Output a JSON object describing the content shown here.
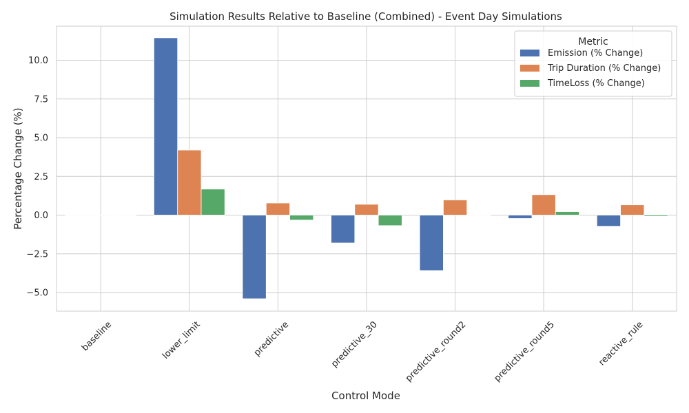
{
  "chart_data": {
    "type": "bar",
    "title": "Simulation Results Relative to Baseline (Combined) - Event Day Simulations",
    "xlabel": "Control Mode",
    "ylabel": "Percentage Change (%)",
    "categories": [
      "baseline",
      "lower_limit",
      "predictive",
      "predictive_30",
      "predictive_round2",
      "predictive_round5",
      "reactive_rule"
    ],
    "ylim": [
      -6.2,
      12.2
    ],
    "yticks": [
      -5.0,
      -2.5,
      0.0,
      2.5,
      5.0,
      7.5,
      10.0
    ],
    "ytick_labels": [
      "−5.0",
      "−2.5",
      "0.0",
      "2.5",
      "5.0",
      "7.5",
      "10.0"
    ],
    "grid": true,
    "legend": {
      "title": "Metric",
      "placement": "top-right"
    },
    "series": [
      {
        "name": "Emission (% Change)",
        "color": "#4c72b0",
        "values": [
          0.0,
          11.45,
          -5.4,
          -1.8,
          -3.58,
          -0.22,
          -0.72
        ]
      },
      {
        "name": "Trip Duration (% Change)",
        "color": "#dd8452",
        "values": [
          0.0,
          4.2,
          0.78,
          0.7,
          0.98,
          1.32,
          0.66
        ]
      },
      {
        "name": "TimeLoss (% Change)",
        "color": "#55a868",
        "values": [
          0.0,
          1.68,
          -0.32,
          -0.68,
          0.0,
          0.22,
          -0.08
        ]
      }
    ]
  }
}
